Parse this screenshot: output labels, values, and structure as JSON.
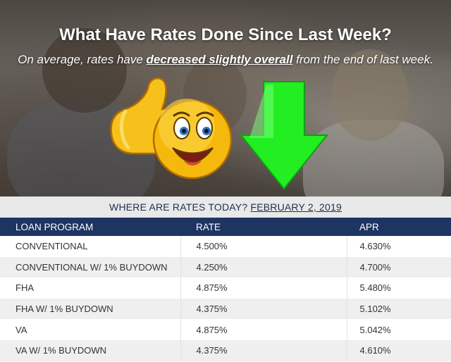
{
  "header": {
    "title": "What Have Rates Done Since Last Week?",
    "subtitle_before": "On average, rates have ",
    "subtitle_highlight": "decreased slightly overall",
    "subtitle_after": " from the end of last week."
  },
  "icons": {
    "emoji": "thumbs-up-smiley-icon",
    "arrow": "down-arrow-icon",
    "arrow_color": "#22ee22"
  },
  "rates_section": {
    "heading": "WHERE ARE RATES TODAY?",
    "date": "FEBRUARY 2, 2019",
    "columns": [
      "LOAN PROGRAM",
      "RATE",
      "APR"
    ],
    "rows": [
      [
        "CONVENTIONAL",
        "4.500%",
        "4.630%"
      ],
      [
        "CONVENTIONAL W/ 1% BUYDOWN",
        "4.250%",
        "4.700%"
      ],
      [
        "FHA",
        "4.875%",
        "5.480%"
      ],
      [
        "FHA W/ 1% BUYDOWN",
        "4.375%",
        "5.102%"
      ],
      [
        "VA",
        "4.875%",
        "5.042%"
      ],
      [
        "VA W/ 1% BUYDOWN",
        "4.375%",
        "4.610%"
      ]
    ]
  },
  "colors": {
    "header_bar": "#1e3462",
    "heading_text": "#1f2e4c"
  }
}
